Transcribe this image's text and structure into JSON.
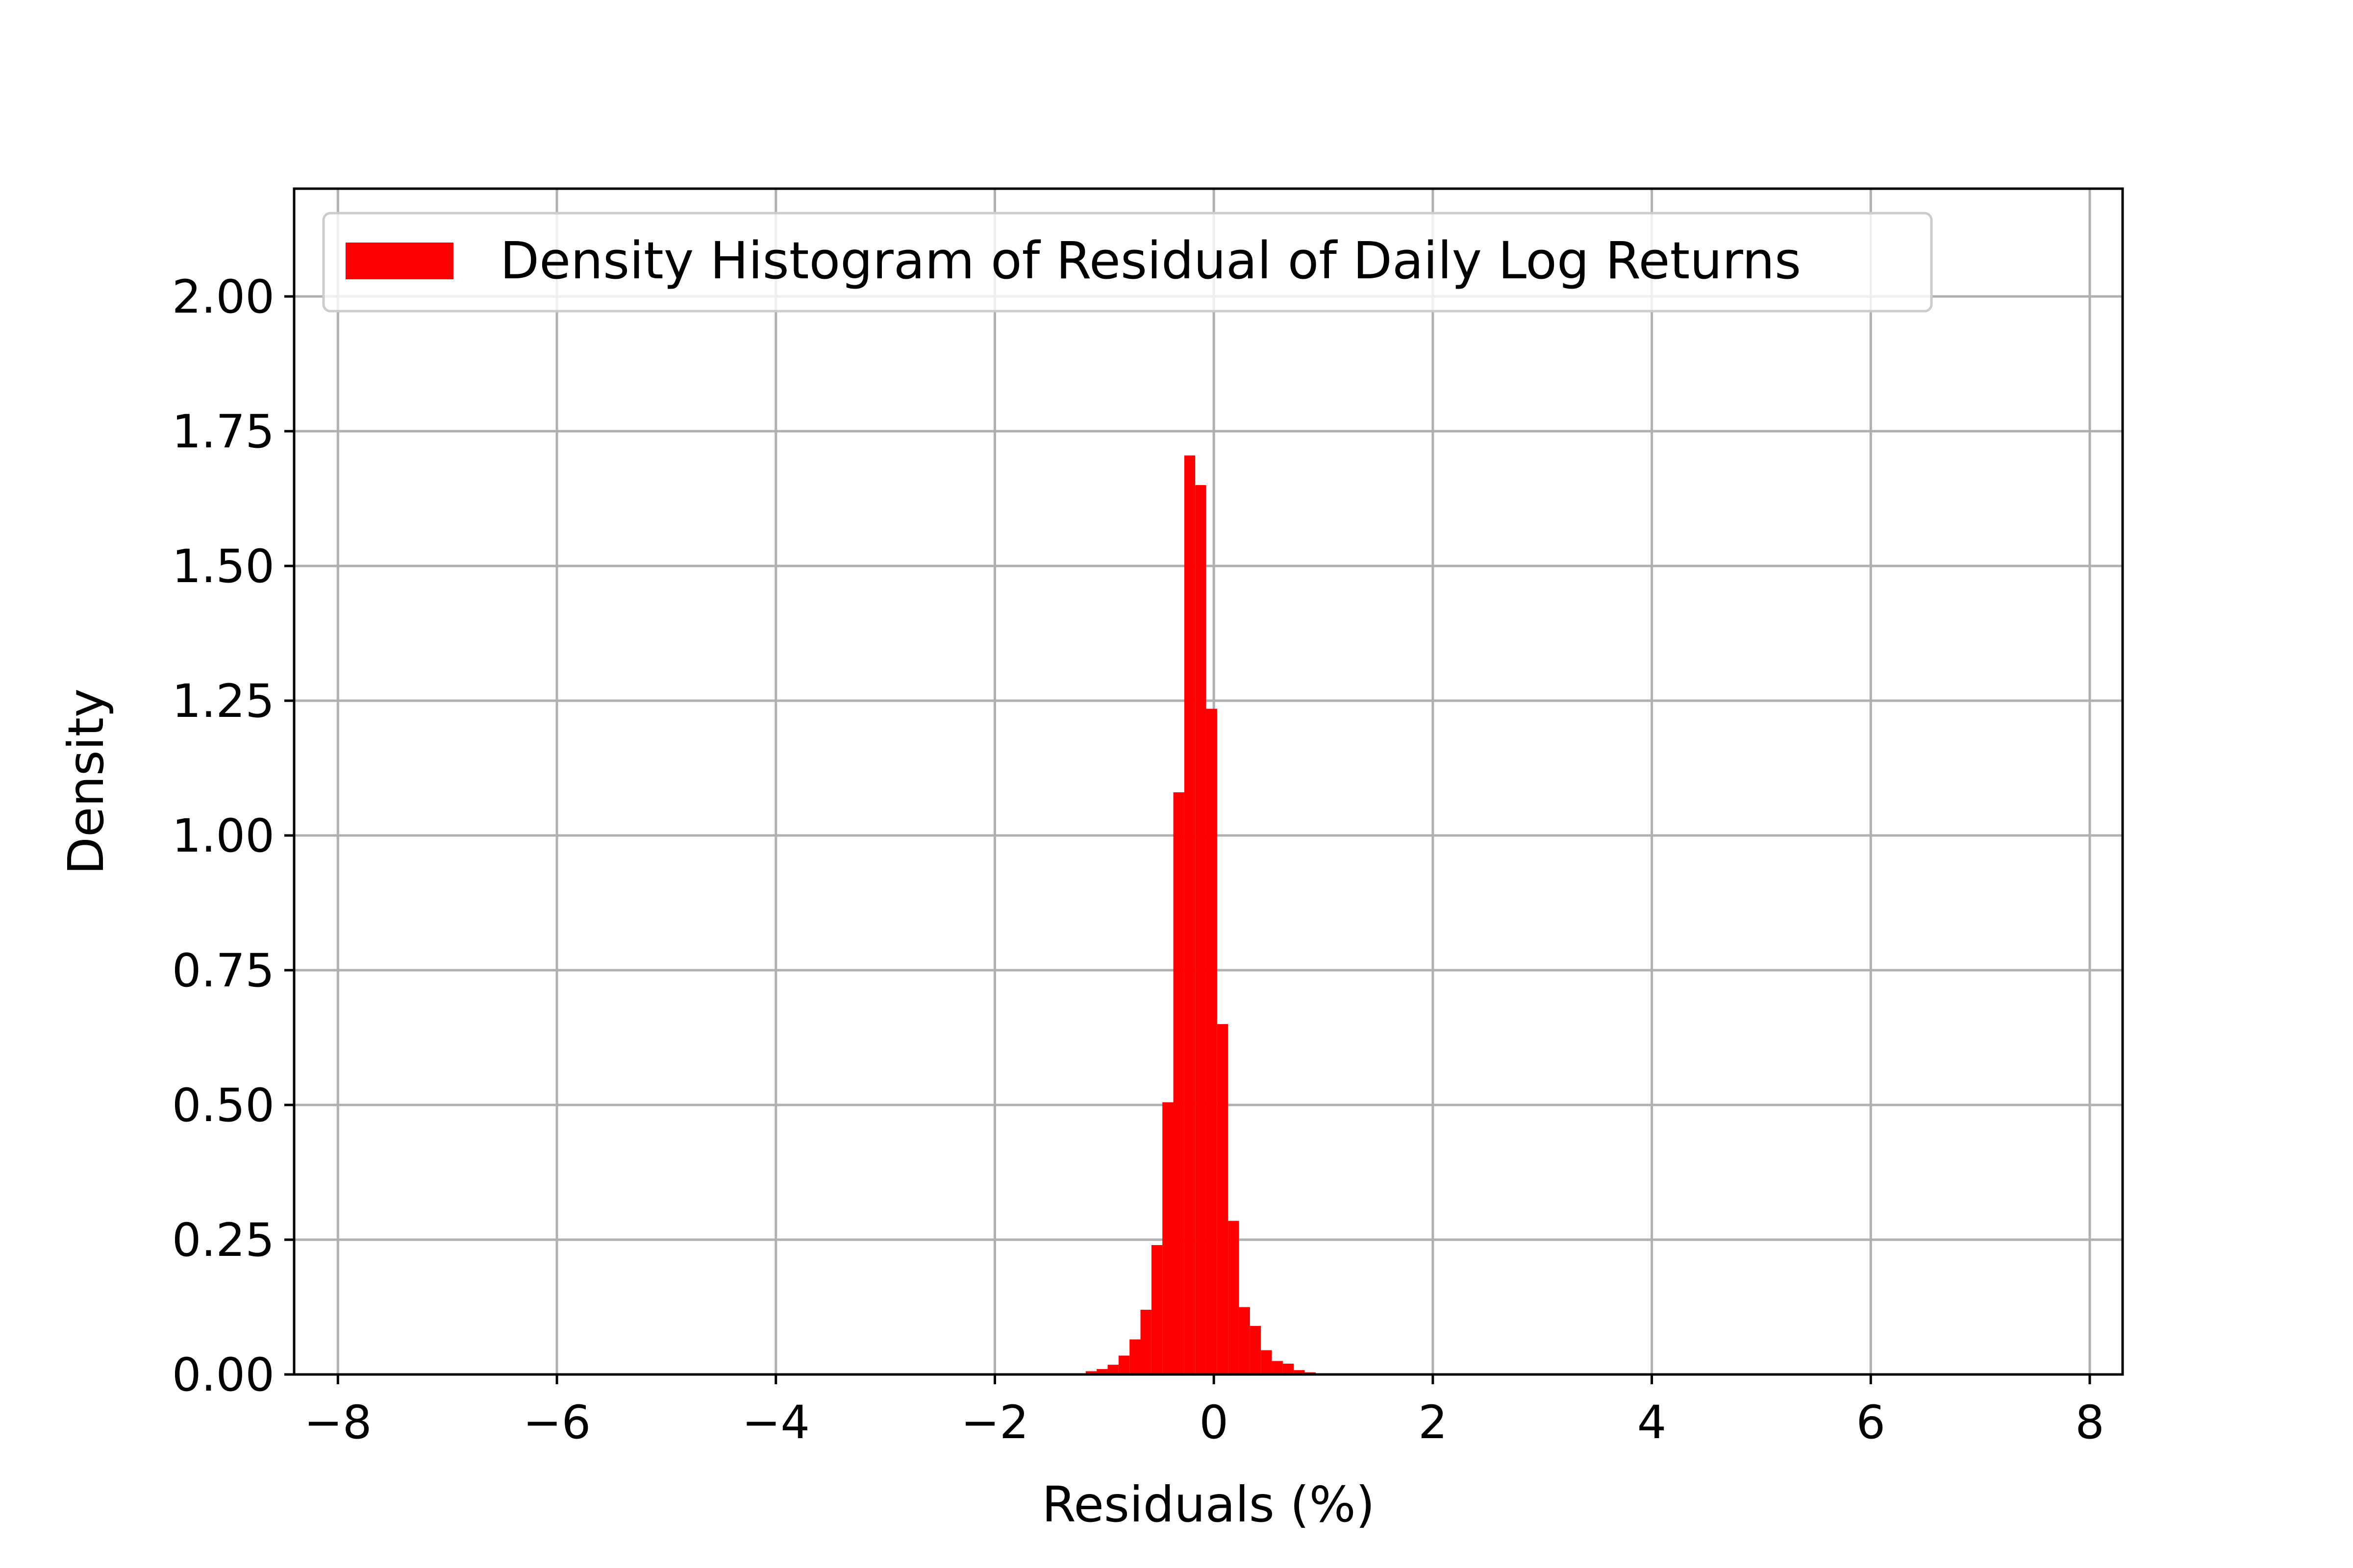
{
  "chart_data": {
    "type": "bar",
    "title": "",
    "xlabel": "Residuals (%)",
    "ylabel": "Density",
    "xlim": [
      -8.4,
      8.3
    ],
    "ylim": [
      0,
      2.2
    ],
    "xticks": [
      -8,
      -6,
      -4,
      -2,
      0,
      2,
      4,
      6,
      8
    ],
    "xtick_labels": [
      "−8",
      "−6",
      "−4",
      "−2",
      "0",
      "2",
      "4",
      "6",
      "8"
    ],
    "yticks": [
      0,
      0.25,
      0.5,
      0.75,
      1.0,
      1.25,
      1.5,
      1.75,
      2.0
    ],
    "ytick_labels": [
      "0.00",
      "0.25",
      "0.50",
      "0.75",
      "1.00",
      "1.25",
      "1.50",
      "1.75",
      "2.00"
    ],
    "grid": true,
    "legend_position": "upper-left",
    "color": "#ff0000",
    "series": [
      {
        "name": "Density Histogram of Residual of Daily Log Returns",
        "bins": [
          {
            "left": -1.17,
            "right": -1.07,
            "value": 0.006
          },
          {
            "left": -1.07,
            "right": -0.97,
            "value": 0.01
          },
          {
            "left": -0.97,
            "right": -0.87,
            "value": 0.018
          },
          {
            "left": -0.87,
            "right": -0.77,
            "value": 0.035
          },
          {
            "left": -0.77,
            "right": -0.67,
            "value": 0.065
          },
          {
            "left": -0.67,
            "right": -0.57,
            "value": 0.12
          },
          {
            "left": -0.57,
            "right": -0.47,
            "value": 0.24
          },
          {
            "left": -0.47,
            "right": -0.37,
            "value": 0.505
          },
          {
            "left": -0.37,
            "right": -0.27,
            "value": 1.08
          },
          {
            "left": -0.27,
            "right": -0.17,
            "value": 1.705
          },
          {
            "left": -0.17,
            "right": -0.07,
            "value": 1.65
          },
          {
            "left": -0.07,
            "right": 0.03,
            "value": 1.235
          },
          {
            "left": 0.03,
            "right": 0.13,
            "value": 0.65
          },
          {
            "left": 0.13,
            "right": 0.23,
            "value": 0.285
          },
          {
            "left": 0.23,
            "right": 0.33,
            "value": 0.125
          },
          {
            "left": 0.33,
            "right": 0.43,
            "value": 0.09
          },
          {
            "left": 0.43,
            "right": 0.53,
            "value": 0.045
          },
          {
            "left": 0.53,
            "right": 0.63,
            "value": 0.025
          },
          {
            "left": 0.63,
            "right": 0.73,
            "value": 0.02
          },
          {
            "left": 0.73,
            "right": 0.83,
            "value": 0.008
          },
          {
            "left": 0.83,
            "right": 0.93,
            "value": 0.004
          }
        ]
      }
    ]
  }
}
